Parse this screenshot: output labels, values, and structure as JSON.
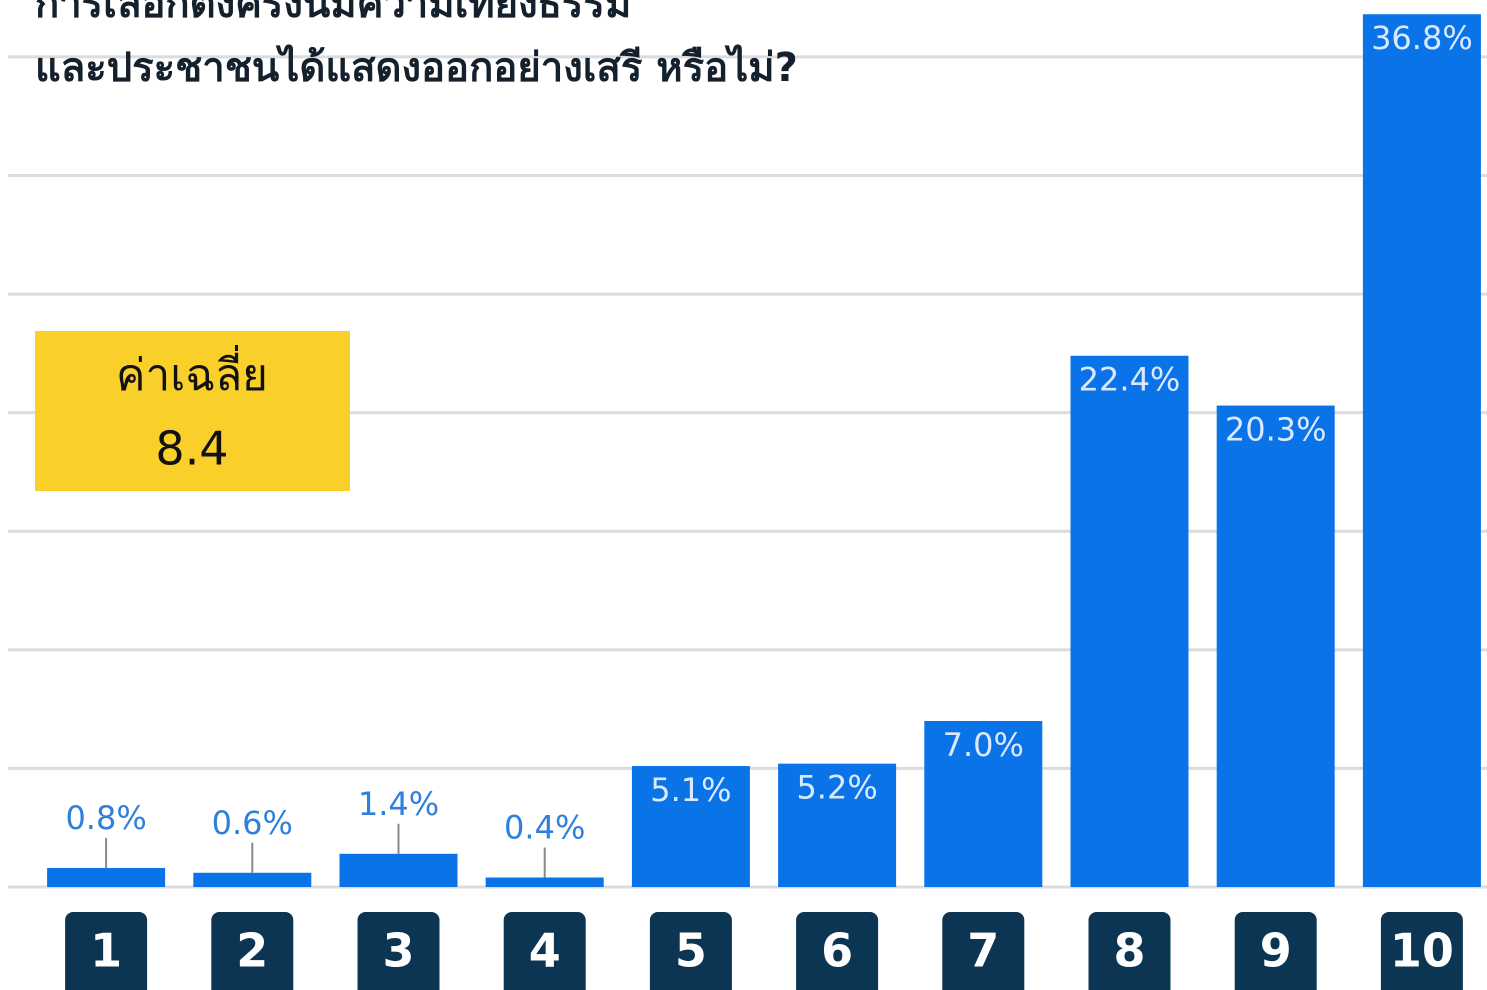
{
  "chart_data": {
    "type": "bar",
    "title": [
      "การเลือกตั้งครั้งนี้มีความเที่ยงธรรม",
      "และประชาชนได้แสดงออกอย่างเสรี หรือไม่?"
    ],
    "annotation": {
      "label": "ค่าเฉลี่ย",
      "value": 8.4
    },
    "categories": [
      "1",
      "2",
      "3",
      "4",
      "5",
      "6",
      "7",
      "8",
      "9",
      "10"
    ],
    "values": [
      0.8,
      0.6,
      1.4,
      0.4,
      5.1,
      5.2,
      7.0,
      22.4,
      20.3,
      36.8
    ],
    "value_labels": [
      "0.8%",
      "0.6%",
      "1.4%",
      "0.4%",
      "5.1%",
      "5.2%",
      "7.0%",
      "22.4%",
      "20.3%",
      "36.8%"
    ],
    "color": "#0a73e8",
    "ylim": [
      0,
      37.4
    ],
    "yticks": [
      0,
      5,
      10,
      15,
      20,
      25,
      30,
      35
    ],
    "grid": true
  }
}
